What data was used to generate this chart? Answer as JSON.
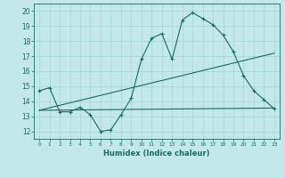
{
  "title": "",
  "xlabel": "Humidex (Indice chaleur)",
  "background_color": "#c2e8e8",
  "grid_color": "#a8d8d8",
  "line_color": "#1a6b5a",
  "xlim": [
    -0.5,
    23.5
  ],
  "ylim": [
    11.5,
    20.5
  ],
  "xtick_vals": [
    0,
    1,
    2,
    3,
    4,
    5,
    6,
    7,
    8,
    9,
    10,
    11,
    12,
    13,
    14,
    15,
    16,
    17,
    18,
    19,
    20,
    21,
    22,
    23
  ],
  "xtick_labels": [
    "0",
    "1",
    "2",
    "3",
    "4",
    "5",
    "6",
    "7",
    "8",
    "9",
    "10",
    "11",
    "12",
    "13",
    "14",
    "15",
    "16",
    "17",
    "18",
    "19",
    "20",
    "21",
    "22",
    "23"
  ],
  "ytick_vals": [
    12,
    13,
    14,
    15,
    16,
    17,
    18,
    19,
    20
  ],
  "ytick_labels": [
    "12",
    "13",
    "14",
    "15",
    "16",
    "17",
    "18",
    "19",
    "20"
  ],
  "curve1_x": [
    0,
    1,
    2,
    3,
    4,
    5,
    6,
    7,
    8,
    9,
    10,
    11,
    12,
    13,
    14,
    15,
    16,
    17,
    18,
    19,
    20,
    21,
    22,
    23
  ],
  "curve1_y": [
    14.7,
    14.9,
    13.3,
    13.3,
    13.6,
    13.1,
    12.0,
    12.1,
    13.1,
    14.2,
    16.8,
    18.2,
    18.5,
    16.8,
    19.4,
    19.9,
    19.5,
    19.1,
    18.4,
    17.3,
    15.7,
    14.7,
    14.1,
    13.5
  ],
  "curve2_x": [
    0,
    23
  ],
  "curve2_y": [
    13.4,
    17.2
  ],
  "curve3_x": [
    0,
    23
  ],
  "curve3_y": [
    13.4,
    13.55
  ]
}
